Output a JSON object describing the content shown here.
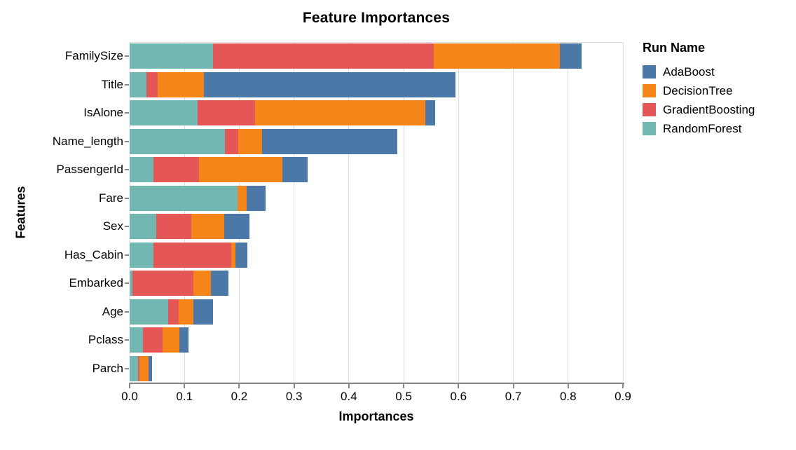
{
  "title": "Feature Importances",
  "legend": {
    "title": "Run Name",
    "position": "right"
  },
  "colors": {
    "AdaBoost": "#4c78a8",
    "DecisionTree": "#f58518",
    "GradientBoosting": "#e45756",
    "RandomForest": "#72b7b2",
    "gridline": "#dddddd",
    "axis_domain": "#888888"
  },
  "chart_data": {
    "type": "bar",
    "orientation": "horizontal",
    "stacked": true,
    "title": "Feature Importances",
    "xlabel": "Importances",
    "ylabel": "Features",
    "xlim": [
      0,
      0.9
    ],
    "xticks": [
      0.0,
      0.1,
      0.2,
      0.3,
      0.4,
      0.5,
      0.6,
      0.7,
      0.8,
      0.9
    ],
    "xtick_labels": [
      "0.0",
      "0.1",
      "0.2",
      "0.3",
      "0.4",
      "0.5",
      "0.6",
      "0.7",
      "0.8",
      "0.9"
    ],
    "grid": true,
    "legend_position": "right",
    "stack_order_left_to_right": [
      "RandomForest",
      "GradientBoosting",
      "DecisionTree",
      "AdaBoost"
    ],
    "categories": [
      "FamilySize",
      "Title",
      "IsAlone",
      "Name_length",
      "PassengerId",
      "Fare",
      "Sex",
      "Has_Cabin",
      "Embarked",
      "Age",
      "Pclass",
      "Parch"
    ],
    "series": [
      {
        "name": "AdaBoost",
        "color": "#4c78a8",
        "values": [
          0.039,
          0.46,
          0.018,
          0.246,
          0.046,
          0.035,
          0.046,
          0.022,
          0.032,
          0.036,
          0.017,
          0.007
        ]
      },
      {
        "name": "DecisionTree",
        "color": "#f58518",
        "values": [
          0.23,
          0.084,
          0.311,
          0.044,
          0.153,
          0.016,
          0.061,
          0.007,
          0.032,
          0.026,
          0.031,
          0.016
        ]
      },
      {
        "name": "GradientBoosting",
        "color": "#e45756",
        "values": [
          0.403,
          0.02,
          0.105,
          0.024,
          0.083,
          0.0,
          0.063,
          0.142,
          0.111,
          0.02,
          0.036,
          0.003
        ]
      },
      {
        "name": "RandomForest",
        "color": "#72b7b2",
        "values": [
          0.152,
          0.031,
          0.124,
          0.174,
          0.043,
          0.197,
          0.049,
          0.044,
          0.005,
          0.07,
          0.024,
          0.015
        ]
      }
    ]
  }
}
